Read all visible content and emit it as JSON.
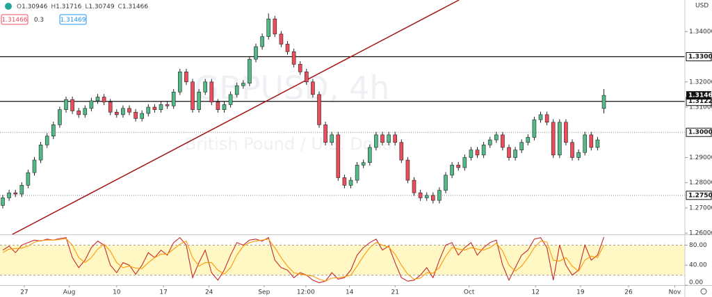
{
  "chart_data": {
    "type": "candlestick",
    "watermark": "GBPUSD, 4h",
    "watermark_subtitle": "British Pound / U.S. Dollar",
    "currency": "USD",
    "ohlc_prefixes": [
      "O",
      "H",
      "L",
      "C"
    ],
    "sell_price": 1.31466,
    "spread": 0.3,
    "buy_price": 1.31469,
    "up_color": "#53b987",
    "down_color": "#eb4d5c",
    "open": [
      1.271,
      1.274,
      1.276,
      1.2755,
      1.279,
      1.284,
      1.289,
      1.295,
      1.2985,
      1.303,
      1.309,
      1.313,
      1.3085,
      1.307,
      1.3095,
      1.3125,
      1.314,
      1.312,
      1.308,
      1.307,
      1.3095,
      1.308,
      1.3055,
      1.3075,
      1.31,
      1.309,
      1.311,
      1.3105,
      1.316,
      1.324,
      1.32,
      1.309,
      1.316,
      1.32,
      1.312,
      1.309,
      1.311,
      1.315,
      1.3185,
      1.3195,
      1.329,
      1.334,
      1.338,
      1.345,
      1.339,
      1.335,
      1.332,
      1.327,
      1.324,
      1.32,
      1.315,
      1.303,
      1.296,
      1.299,
      1.282,
      1.279,
      1.281,
      1.287,
      1.288,
      1.294,
      1.299,
      1.296,
      1.299,
      1.296,
      1.289,
      1.281,
      1.276,
      1.274,
      1.275,
      1.273,
      1.277,
      1.283,
      1.287,
      1.286,
      1.29,
      1.293,
      1.291,
      1.295,
      1.297,
      1.299,
      1.294,
      1.29,
      1.293,
      1.296,
      1.298,
      1.305,
      1.307,
      1.304,
      1.291,
      1.304,
      1.296,
      1.29,
      1.292,
      1.299,
      1.294,
      1.30946
    ],
    "high": [
      1.2752,
      1.2772,
      1.2772,
      1.2802,
      1.2852,
      1.2902,
      1.2962,
      1.2997,
      1.3042,
      1.3102,
      1.3142,
      1.3142,
      1.3097,
      1.3107,
      1.3137,
      1.3152,
      1.3152,
      1.3132,
      1.3092,
      1.3107,
      1.3107,
      1.3092,
      1.3087,
      1.3112,
      1.3112,
      1.3122,
      1.3122,
      1.3172,
      1.3252,
      1.3252,
      1.3212,
      1.3172,
      1.3212,
      1.3212,
      1.3132,
      1.3122,
      1.3162,
      1.3197,
      1.3207,
      1.3302,
      1.3352,
      1.3392,
      1.3472,
      1.3462,
      1.3402,
      1.3362,
      1.3332,
      1.3282,
      1.3252,
      1.3212,
      1.3162,
      1.3042,
      1.3002,
      1.3002,
      1.2832,
      1.2822,
      1.2882,
      1.2892,
      1.2952,
      1.3002,
      1.3002,
      1.3002,
      1.3002,
      1.2972,
      1.2902,
      1.2822,
      1.2772,
      1.2762,
      1.2762,
      1.2782,
      1.2842,
      1.2882,
      1.2882,
      1.2912,
      1.2942,
      1.2942,
      1.2962,
      1.2982,
      1.3002,
      1.3002,
      1.2952,
      1.2942,
      1.2972,
      1.2992,
      1.3062,
      1.3082,
      1.3082,
      1.3052,
      1.3052,
      1.3052,
      1.2972,
      1.2932,
      1.3002,
      1.3002,
      1.2982,
      1.31716
    ],
    "low": [
      1.2698,
      1.2728,
      1.2743,
      1.2743,
      1.2778,
      1.2828,
      1.2878,
      1.2938,
      1.2973,
      1.3018,
      1.3078,
      1.3073,
      1.3058,
      1.3058,
      1.3083,
      1.3113,
      1.3108,
      1.3068,
      1.3058,
      1.3058,
      1.3068,
      1.3043,
      1.3043,
      1.3063,
      1.3078,
      1.3078,
      1.3093,
      1.3093,
      1.3148,
      1.3188,
      1.3078,
      1.3078,
      1.3148,
      1.3108,
      1.3078,
      1.3078,
      1.3098,
      1.3138,
      1.3173,
      1.3183,
      1.3278,
      1.3328,
      1.3368,
      1.3378,
      1.3338,
      1.3308,
      1.3258,
      1.3228,
      1.3188,
      1.3138,
      1.3018,
      1.2948,
      1.2948,
      1.2808,
      1.2778,
      1.2778,
      1.2798,
      1.2858,
      1.2868,
      1.2928,
      1.2948,
      1.2948,
      1.2948,
      1.2878,
      1.2798,
      1.2748,
      1.2728,
      1.2728,
      1.2718,
      1.2718,
      1.2758,
      1.2818,
      1.2848,
      1.2848,
      1.2888,
      1.2898,
      1.2898,
      1.2938,
      1.2958,
      1.2928,
      1.2888,
      1.2888,
      1.2918,
      1.2948,
      1.2968,
      1.3038,
      1.3028,
      1.2898,
      1.2898,
      1.2948,
      1.2888,
      1.2888,
      1.2908,
      1.2928,
      1.2928,
      1.30749
    ],
    "close": [
      1.274,
      1.276,
      1.2755,
      1.279,
      1.284,
      1.289,
      1.295,
      1.2985,
      1.303,
      1.309,
      1.313,
      1.3085,
      1.307,
      1.3095,
      1.3125,
      1.314,
      1.312,
      1.308,
      1.307,
      1.3095,
      1.308,
      1.3055,
      1.3075,
      1.31,
      1.309,
      1.311,
      1.3105,
      1.316,
      1.324,
      1.32,
      1.309,
      1.316,
      1.32,
      1.312,
      1.309,
      1.311,
      1.315,
      1.3185,
      1.3195,
      1.329,
      1.334,
      1.338,
      1.345,
      1.339,
      1.335,
      1.332,
      1.327,
      1.324,
      1.32,
      1.315,
      1.303,
      1.296,
      1.299,
      1.282,
      1.279,
      1.281,
      1.287,
      1.288,
      1.294,
      1.299,
      1.296,
      1.299,
      1.296,
      1.289,
      1.281,
      1.276,
      1.274,
      1.275,
      1.273,
      1.277,
      1.283,
      1.287,
      1.286,
      1.29,
      1.293,
      1.291,
      1.295,
      1.297,
      1.299,
      1.294,
      1.29,
      1.293,
      1.296,
      1.298,
      1.305,
      1.307,
      1.304,
      1.291,
      1.304,
      1.296,
      1.29,
      1.292,
      1.299,
      1.294,
      1.297,
      1.31466
    ],
    "xlim": [
      -0.44,
      107.8
    ],
    "ylim": [
      1.2595,
      1.3525
    ],
    "yticks": [
      {
        "value": 1.34,
        "label": "1.34000"
      },
      {
        "value": 1.32,
        "label": "1.32000"
      },
      {
        "value": 1.31,
        "label": "1.31000"
      },
      {
        "value": 1.29,
        "label": "1.29000"
      },
      {
        "value": 1.28,
        "label": "1.28000"
      },
      {
        "value": 1.27,
        "label": "1.27000"
      },
      {
        "value": 1.26,
        "label": "1.26000"
      }
    ],
    "xticks": [
      {
        "value": 3.4,
        "label": "27"
      },
      {
        "value": 10.5,
        "label": "Aug"
      },
      {
        "value": 18.0,
        "label": "10"
      },
      {
        "value": 25.4,
        "label": "17"
      },
      {
        "value": 32.6,
        "label": "24"
      },
      {
        "value": 41.3,
        "label": "Sep"
      },
      {
        "value": 47.9,
        "label": "12:00"
      },
      {
        "value": 54.8,
        "label": "14"
      },
      {
        "value": 62.0,
        "label": "21"
      },
      {
        "value": 73.7,
        "label": "Oct"
      },
      {
        "value": 84.2,
        "label": "12"
      },
      {
        "value": 91.3,
        "label": "19"
      },
      {
        "value": 98.9,
        "label": "26"
      },
      {
        "value": 106.2,
        "label": "Nov"
      }
    ],
    "levels": [
      {
        "value": 1.33,
        "label": "1.33000",
        "style": "solid"
      },
      {
        "value": 1.31228,
        "label": "1.31228",
        "style": "solid"
      },
      {
        "value": 1.3,
        "label": "1.30000",
        "style": "dotted"
      },
      {
        "value": 1.275,
        "label": "1.27500",
        "style": "dotted"
      }
    ],
    "trendline": {
      "color": "#a31515",
      "start": [
        1.5,
        1.2595
      ],
      "end": [
        72.1,
        1.3525
      ]
    },
    "stochastic": {
      "type": "line",
      "ylim": [
        0,
        100
      ],
      "yticks": [
        {
          "value": 80,
          "label": "80.00"
        },
        {
          "value": 40,
          "label": "40.00"
        },
        {
          "value": 0,
          "label": "0.00"
        }
      ],
      "band": [
        20,
        80
      ],
      "band_color": "#fff8c4",
      "series": [
        {
          "color": "#c62828",
          "values": [
            70,
            78,
            65,
            80,
            85,
            90,
            88,
            92,
            90,
            93,
            95,
            55,
            35,
            50,
            75,
            88,
            80,
            40,
            25,
            45,
            40,
            22,
            40,
            65,
            55,
            70,
            60,
            85,
            95,
            80,
            15,
            45,
            70,
            25,
            10,
            30,
            60,
            85,
            80,
            90,
            92,
            88,
            95,
            50,
            35,
            30,
            15,
            25,
            20,
            10,
            5,
            8,
            25,
            12,
            15,
            30,
            60,
            75,
            85,
            92,
            70,
            78,
            45,
            15,
            8,
            10,
            20,
            35,
            15,
            50,
            80,
            85,
            60,
            75,
            85,
            60,
            75,
            85,
            90,
            40,
            10,
            35,
            60,
            70,
            92,
            95,
            75,
            10,
            80,
            40,
            20,
            30,
            80,
            50,
            60,
            96
          ]
        },
        {
          "color": "#ff9800",
          "values": [
            65,
            72,
            73,
            74,
            78,
            86,
            89,
            90,
            90,
            91,
            93,
            80,
            55,
            45,
            55,
            72,
            82,
            68,
            45,
            35,
            38,
            34,
            33,
            45,
            55,
            62,
            62,
            72,
            82,
            88,
            55,
            38,
            45,
            45,
            30,
            22,
            35,
            60,
            78,
            85,
            88,
            90,
            92,
            75,
            55,
            38,
            25,
            22,
            20,
            18,
            12,
            8,
            14,
            15,
            17,
            20,
            38,
            58,
            75,
            85,
            80,
            76,
            62,
            40,
            22,
            12,
            14,
            25,
            24,
            35,
            58,
            75,
            72,
            70,
            75,
            72,
            70,
            75,
            84,
            68,
            40,
            28,
            38,
            55,
            75,
            88,
            86,
            50,
            48,
            55,
            38,
            28,
            50,
            58,
            55,
            80
          ]
        }
      ]
    }
  }
}
